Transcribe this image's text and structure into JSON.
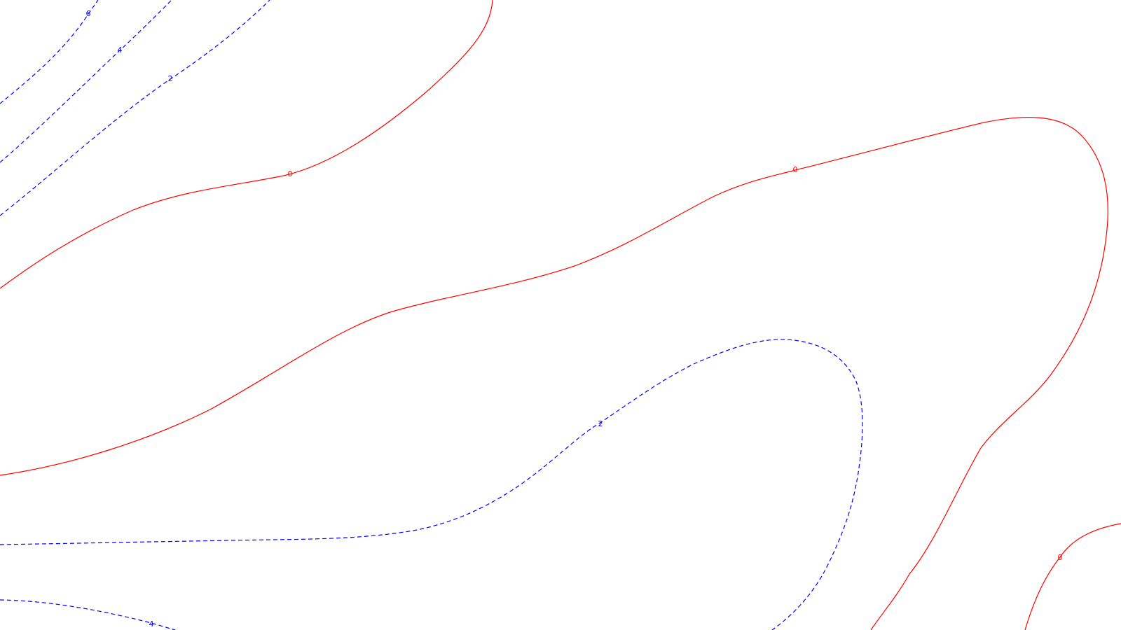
{
  "colors": {
    "zero_level": "#ff0000",
    "nonzero_level": "#0000ff",
    "background": "#ffffff"
  },
  "contours": [
    {
      "level": "0",
      "style": "solid",
      "color": "#ff0000"
    },
    {
      "level": "0",
      "style": "solid",
      "color": "#ff0000"
    },
    {
      "level": "0",
      "style": "solid",
      "color": "#ff0000"
    },
    {
      "level": "0",
      "style": "solid",
      "color": "#ff0000"
    },
    {
      "level": "6",
      "style": "dashed",
      "color": "#0000ff"
    },
    {
      "level": "4",
      "style": "dashed",
      "color": "#0000ff"
    },
    {
      "level": "2",
      "style": "dashed",
      "color": "#0000ff"
    },
    {
      "level": "2",
      "style": "dashed",
      "color": "#0000ff"
    },
    {
      "level": "4",
      "style": "dashed",
      "color": "#0000ff"
    }
  ],
  "labels": [
    {
      "text": "0",
      "color": "#ff0000"
    },
    {
      "text": "0",
      "color": "#ff0000"
    },
    {
      "text": "0",
      "color": "#ff0000"
    },
    {
      "text": "6",
      "color": "#0000ff"
    },
    {
      "text": "4",
      "color": "#0000ff"
    },
    {
      "text": "2",
      "color": "#0000ff"
    },
    {
      "text": "2",
      "color": "#0000ff"
    },
    {
      "text": "4",
      "color": "#0000ff"
    }
  ]
}
